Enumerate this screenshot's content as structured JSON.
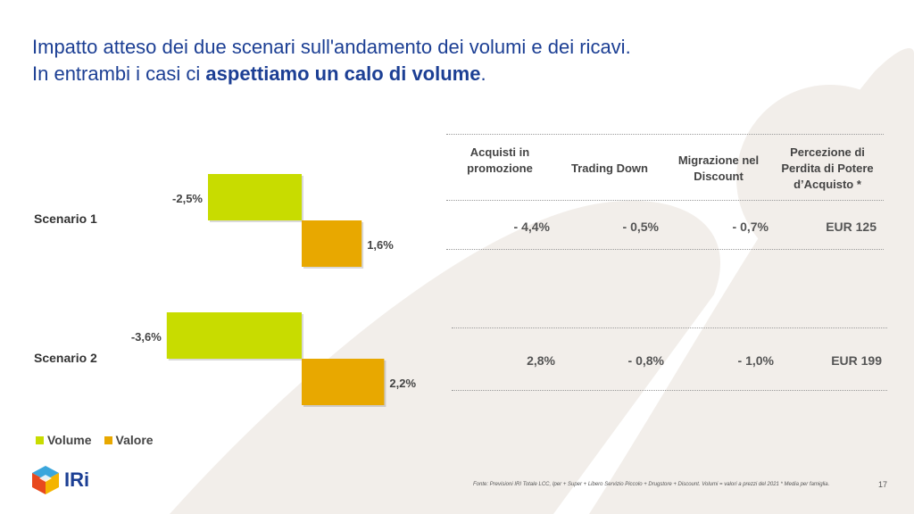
{
  "title": {
    "line1": "Impatto atteso dei due scenari sull'andamento dei volumi e dei ricavi.",
    "line2_prefix": "In entrambi i casi ci ",
    "line2_bold": "aspettiamo un calo di volume",
    "line2_suffix": "."
  },
  "colors": {
    "volume": "#c8dc00",
    "valore": "#e8a800",
    "title": "#1c3f94",
    "background_shape": "#f2eeea"
  },
  "chart_data": {
    "type": "bar",
    "orientation": "horizontal",
    "categories": [
      "Scenario 1",
      "Scenario 2"
    ],
    "series": [
      {
        "name": "Volume",
        "values": [
          -2.5,
          -3.6
        ],
        "labels": [
          "-2,5%",
          "-3,6%"
        ]
      },
      {
        "name": "Valore",
        "values": [
          1.6,
          2.2
        ],
        "labels": [
          "1,6%",
          "2,2%"
        ]
      }
    ],
    "legend": "bottom-left"
  },
  "table": {
    "headers": [
      "Acquisti in promozione",
      "Trading Down",
      "Migrazione nel Discount",
      "Percezione di Perdita di Potere d’Acquisto *"
    ],
    "rows": [
      [
        "- 4,4%",
        "- 0,5%",
        "- 0,7%",
        "EUR 125"
      ],
      [
        "2,8%",
        "- 0,8%",
        "- 1,0%",
        "EUR 199"
      ]
    ]
  },
  "logo": {
    "text": "IRi"
  },
  "footnote": "Fonte: Previsioni IRI Totale LCC, Iper + Super + Libero Servizio Piccolo + Drugstore + Discount. Volumi = valori a prezzi del 2021 * Media per famiglia.",
  "page_number": "17"
}
